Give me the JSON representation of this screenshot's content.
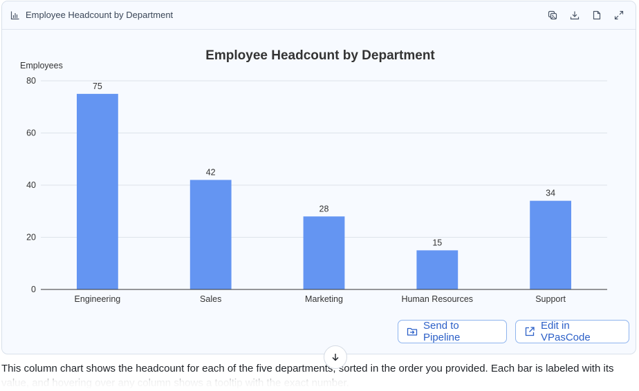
{
  "header": {
    "title": "Employee Headcount by Department",
    "icons": [
      "bar-chart-icon",
      "copy-image-icon",
      "download-icon",
      "file-icon",
      "expand-icon"
    ]
  },
  "chart_data": {
    "type": "bar",
    "title": "Employee Headcount by Department",
    "xlabel": "",
    "ylabel": "Employees",
    "categories": [
      "Engineering",
      "Sales",
      "Marketing",
      "Human Resources",
      "Support"
    ],
    "values": [
      75,
      42,
      28,
      15,
      34
    ],
    "data_labels": [
      "75",
      "42",
      "28",
      "15",
      "34"
    ],
    "ylim": [
      0,
      80
    ],
    "yticks": [
      0,
      20,
      40,
      60,
      80
    ],
    "grid": true,
    "bar_color": "#6495f2"
  },
  "actions": {
    "send_label": "Send to Pipeline",
    "edit_label": "Edit in VPasCode"
  },
  "description": "This column chart shows the headcount for each of the five departments, sorted in the order you provided. Each bar is labeled with its value, and hovering over any column shows a tooltip with the exact number."
}
